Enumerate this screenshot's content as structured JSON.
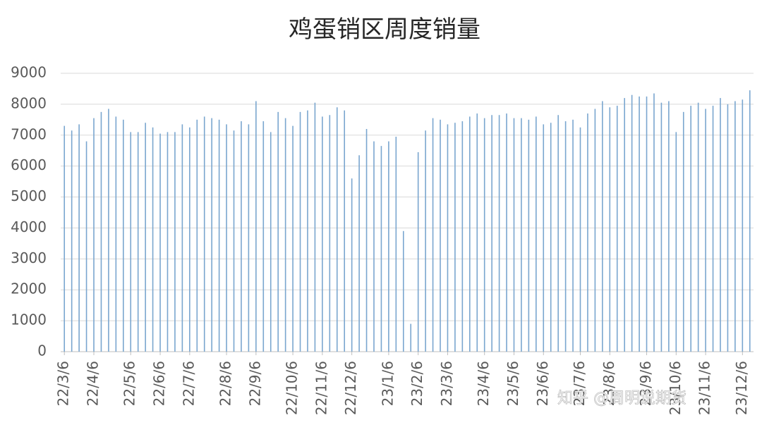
{
  "chart_data": {
    "type": "bar",
    "title": "鸡蛋销区周度销量",
    "annotation": "知乎 @周明说期货",
    "color": "#7aa6cf",
    "grid": true,
    "ylim": [
      0,
      9000
    ],
    "yticks": [
      0,
      1000,
      2000,
      3000,
      4000,
      5000,
      6000,
      7000,
      8000,
      9000
    ],
    "categories": [
      "22/3/6",
      null,
      null,
      null,
      "22/4/6",
      null,
      null,
      null,
      null,
      "22/5/6",
      null,
      null,
      null,
      "22/6/6",
      null,
      null,
      null,
      "22/7/6",
      null,
      null,
      null,
      null,
      "22/8/6",
      null,
      null,
      null,
      "22/9/6",
      null,
      null,
      null,
      null,
      "22/10/6",
      null,
      null,
      null,
      "22/11/6",
      null,
      null,
      null,
      "22/12/6",
      null,
      null,
      null,
      null,
      "23/1/6",
      null,
      null,
      null,
      "23/2/6",
      null,
      null,
      null,
      "23/3/6",
      null,
      null,
      null,
      null,
      "23/4/6",
      null,
      null,
      null,
      "23/5/6",
      null,
      null,
      null,
      "23/6/6",
      null,
      null,
      null,
      null,
      "23/7/6",
      null,
      null,
      null,
      "23/8/6",
      null,
      null,
      null,
      null,
      "23/9/6",
      null,
      null,
      null,
      "23/10/6",
      null,
      null,
      null,
      "23/11/6",
      null,
      null,
      null,
      null,
      "23/12/6",
      null
    ],
    "values": [
      7300,
      7150,
      7350,
      6800,
      7550,
      7750,
      7850,
      7600,
      7500,
      7100,
      7100,
      7400,
      7250,
      7050,
      7100,
      7100,
      7350,
      7250,
      7500,
      7600,
      7550,
      7500,
      7350,
      7150,
      7450,
      7350,
      8100,
      7450,
      7100,
      7750,
      7550,
      7300,
      7750,
      7800,
      8050,
      7600,
      7650,
      7900,
      7800,
      5600,
      6350,
      7200,
      6800,
      6650,
      6800,
      6950,
      3900,
      900,
      6450,
      7150,
      7550,
      7500,
      7350,
      7400,
      7450,
      7600,
      7700,
      7550,
      7650,
      7650,
      7700,
      7550,
      7550,
      7500,
      7600,
      7350,
      7400,
      7650,
      7450,
      7500,
      7250,
      7700,
      7850,
      8100,
      7900,
      7950,
      8200,
      8300,
      8250,
      8250,
      8350,
      8050,
      8100,
      7100,
      7750,
      7950,
      8050,
      7850,
      7950,
      8200,
      8000,
      8100,
      8150,
      8450
    ]
  }
}
